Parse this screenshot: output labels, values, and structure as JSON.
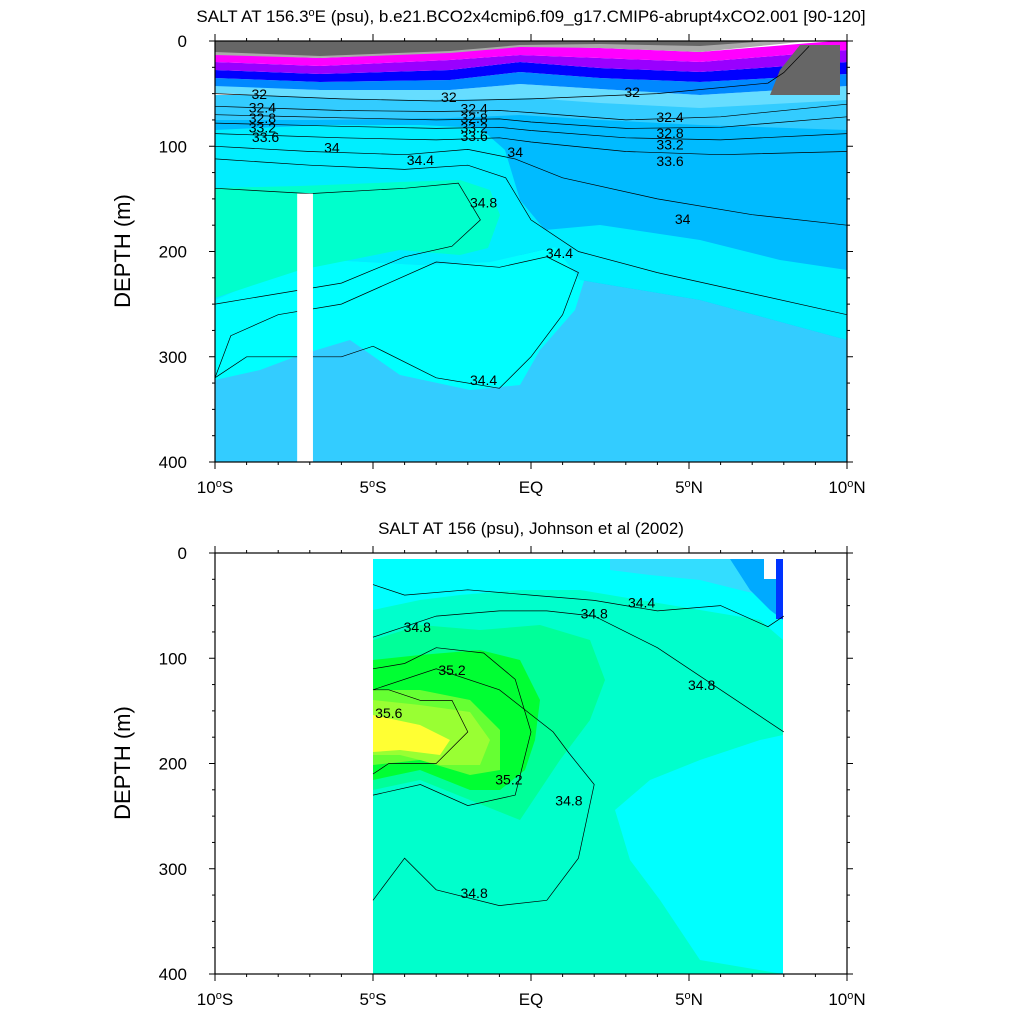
{
  "chart_data": [
    {
      "type": "heatmap",
      "title": "SALT AT 156.3°E (psu), b.e21.BCO2x4cmip6.f09_g17.CMIP6-abrupt4xCO2.001 [90-120]",
      "title_main": "SALT AT 156.3",
      "title_deg": "o",
      "title_rest": "E (psu), b.e21.BCO2x4cmip6.f09_g17.CMIP6-abrupt4xCO2.001 [90-120]",
      "ylabel": "DEPTH (m)",
      "xlabel": "",
      "xlim": [
        -10,
        10
      ],
      "ylim": [
        0,
        400
      ],
      "y_reversed": true,
      "x_ticks": [
        {
          "value": -10,
          "num": "10",
          "deg": "o",
          "hem": "S"
        },
        {
          "value": -5,
          "num": "5",
          "deg": "o",
          "hem": "S"
        },
        {
          "value": 0,
          "num": "EQ",
          "deg": "",
          "hem": ""
        },
        {
          "value": 5,
          "num": "5",
          "deg": "o",
          "hem": "N"
        },
        {
          "value": 10,
          "num": "10",
          "deg": "o",
          "hem": "N"
        }
      ],
      "y_ticks": [
        0,
        100,
        200,
        300,
        400
      ],
      "contour_labels": [
        {
          "text": "32",
          "x": -8.6,
          "y": 55
        },
        {
          "text": "32",
          "x": -2.6,
          "y": 58
        },
        {
          "text": "32",
          "x": 3.2,
          "y": 53
        },
        {
          "text": "32.4",
          "x": -8.5,
          "y": 68
        },
        {
          "text": "32.4",
          "x": -1.8,
          "y": 69
        },
        {
          "text": "32.4",
          "x": 4.4,
          "y": 77
        },
        {
          "text": "32.8",
          "x": -8.5,
          "y": 78
        },
        {
          "text": "32.8",
          "x": -1.8,
          "y": 78
        },
        {
          "text": "32.8",
          "x": 4.4,
          "y": 92
        },
        {
          "text": "33.2",
          "x": -8.5,
          "y": 87
        },
        {
          "text": "33.2",
          "x": -1.8,
          "y": 87
        },
        {
          "text": "33.2",
          "x": 4.4,
          "y": 103
        },
        {
          "text": "33.6",
          "x": -8.4,
          "y": 96
        },
        {
          "text": "33.6",
          "x": -1.8,
          "y": 95
        },
        {
          "text": "33.6",
          "x": 4.4,
          "y": 119
        },
        {
          "text": "34",
          "x": -6.3,
          "y": 106
        },
        {
          "text": "34",
          "x": -0.5,
          "y": 110
        },
        {
          "text": "34",
          "x": 4.8,
          "y": 174
        },
        {
          "text": "34.4",
          "x": -3.5,
          "y": 118
        },
        {
          "text": "34.4",
          "x": 0.9,
          "y": 206
        },
        {
          "text": "34.4",
          "x": -1.5,
          "y": 327
        },
        {
          "text": "34.8",
          "x": -1.5,
          "y": 158
        }
      ],
      "contour_lines": [
        {
          "level": 32,
          "x": [
            -10,
            -6,
            -3,
            0,
            4,
            7.5,
            8,
            8.8
          ],
          "y": [
            50,
            55,
            57,
            55,
            50,
            40,
            30,
            5
          ]
        },
        {
          "level": 32.4,
          "x": [
            -10,
            -6,
            -3,
            -1,
            0,
            3,
            6,
            10
          ],
          "y": [
            62,
            66,
            67,
            66,
            68,
            75,
            72,
            60
          ]
        },
        {
          "level": 32.8,
          "x": [
            -10,
            -6,
            -3,
            -1,
            0,
            3,
            6,
            10
          ],
          "y": [
            70,
            73,
            75,
            74,
            77,
            83,
            82,
            72
          ]
        },
        {
          "level": 33.2,
          "x": [
            -10,
            -6,
            -3,
            -1,
            0,
            3,
            6,
            10
          ],
          "y": [
            78,
            81,
            83,
            82,
            85,
            92,
            94,
            88
          ]
        },
        {
          "level": 33.6,
          "x": [
            -10,
            -6,
            -3,
            -1,
            0,
            3,
            6,
            10
          ],
          "y": [
            88,
            92,
            94,
            92,
            96,
            105,
            108,
            105
          ]
        },
        {
          "level": 34,
          "x": [
            -10,
            -7,
            -4,
            -2,
            -0.5,
            1,
            4,
            7,
            10
          ],
          "y": [
            100,
            105,
            108,
            103,
            112,
            130,
            150,
            165,
            175
          ]
        },
        {
          "level": 34.4,
          "x": [
            -10,
            -7,
            -4,
            -2,
            -0.8,
            0,
            1.5,
            4,
            7,
            10
          ],
          "y": [
            112,
            118,
            122,
            118,
            130,
            170,
            200,
            220,
            240,
            260
          ]
        },
        {
          "level": 34.4,
          "x": [
            -10,
            -9,
            -6,
            -5,
            -3,
            -1,
            0,
            1,
            1.5,
            0.5,
            -1,
            -3,
            -6,
            -8,
            -9.5,
            -10
          ],
          "y": [
            320,
            300,
            300,
            290,
            320,
            330,
            300,
            260,
            220,
            205,
            215,
            210,
            250,
            260,
            280,
            320
          ]
        },
        {
          "level": 34.8,
          "x": [
            -10,
            -7,
            -4,
            -2.3,
            -1.6,
            -2.5,
            -4,
            -6,
            -8,
            -10
          ],
          "y": [
            140,
            145,
            140,
            135,
            170,
            195,
            205,
            230,
            240,
            250
          ]
        }
      ],
      "filled_regions": [
        {
          "level_range": [
            34.0,
            34.4
          ],
          "color": "#33ccff"
        },
        {
          "level_range": [
            34.4,
            34.8
          ],
          "color": "#00ffff"
        },
        {
          "level_range": [
            34.8,
            35.2
          ],
          "color": "#00ffcc"
        }
      ],
      "missing_data": [
        {
          "x": [
            -7.4,
            -6.9
          ],
          "y": [
            145,
            400
          ]
        }
      ]
    },
    {
      "type": "heatmap",
      "title": "SALT AT 156 (psu), Johnson et al (2002)",
      "ylabel": "DEPTH (m)",
      "xlabel": "",
      "xlim": [
        -10,
        10
      ],
      "ylim": [
        0,
        400
      ],
      "y_reversed": true,
      "data_extent_x": [
        -5,
        8
      ],
      "x_ticks": [
        {
          "value": -10,
          "num": "10",
          "deg": "o",
          "hem": "S"
        },
        {
          "value": -5,
          "num": "5",
          "deg": "o",
          "hem": "S"
        },
        {
          "value": 0,
          "num": "EQ",
          "deg": "",
          "hem": ""
        },
        {
          "value": 5,
          "num": "5",
          "deg": "o",
          "hem": "N"
        },
        {
          "value": 10,
          "num": "10",
          "deg": "o",
          "hem": "N"
        }
      ],
      "y_ticks": [
        0,
        100,
        200,
        300,
        400
      ],
      "contour_labels": [
        {
          "text": "34.8",
          "x": -3.6,
          "y": 75
        },
        {
          "text": "34.8",
          "x": 2.0,
          "y": 62
        },
        {
          "text": "34.4",
          "x": 3.5,
          "y": 52
        },
        {
          "text": "34.8",
          "x": 5.4,
          "y": 130
        },
        {
          "text": "35.2",
          "x": -2.5,
          "y": 116
        },
        {
          "text": "35.6",
          "x": -4.5,
          "y": 157
        },
        {
          "text": "35.2",
          "x": -0.7,
          "y": 220
        },
        {
          "text": "34.8",
          "x": 1.2,
          "y": 240
        },
        {
          "text": "34.8",
          "x": -1.8,
          "y": 328
        }
      ],
      "contour_lines": [
        {
          "level": 34.4,
          "x": [
            -5,
            -4,
            -2,
            0,
            2,
            4,
            6,
            7.5,
            8
          ],
          "y": [
            30,
            40,
            35,
            40,
            45,
            55,
            50,
            70,
            60
          ]
        },
        {
          "level": 34.8,
          "x": [
            -5,
            -4,
            -3,
            -1,
            0.5,
            2,
            4,
            6,
            7.5,
            8
          ],
          "y": [
            80,
            70,
            60,
            55,
            55,
            60,
            90,
            130,
            160,
            170
          ]
        },
        {
          "level": 35.2,
          "x": [
            -5,
            -4,
            -3,
            -1.5,
            -0.5,
            0,
            -0.5,
            -2,
            -3.5,
            -5
          ],
          "y": [
            110,
            105,
            90,
            95,
            120,
            170,
            230,
            240,
            220,
            230
          ]
        },
        {
          "level": 35.6,
          "x": [
            -5,
            -4.5,
            -3.5,
            -2.5,
            -2,
            -3,
            -4.5,
            -5
          ],
          "y": [
            130,
            130,
            140,
            140,
            170,
            200,
            200,
            210
          ]
        },
        {
          "level": 34.8,
          "x": [
            -5,
            -4,
            -3,
            -1,
            0.5,
            1.5,
            2,
            1.2,
            0.7,
            -1,
            -3,
            -5
          ],
          "y": [
            330,
            290,
            320,
            335,
            330,
            290,
            220,
            190,
            170,
            130,
            110,
            130
          ]
        }
      ],
      "filled_regions": [
        {
          "level_range": [
            34.0,
            34.4
          ],
          "color": "#33ccff"
        },
        {
          "level_range": [
            34.4,
            34.8
          ],
          "color": "#00ffff"
        },
        {
          "level_range": [
            34.8,
            35.2
          ],
          "color": "#00ffcc"
        },
        {
          "level_range": [
            35.2,
            35.6
          ],
          "color": "#00ff33"
        },
        {
          "level_range": [
            35.6,
            36.0
          ],
          "color": "#99ff33"
        },
        {
          "level_range": [
            36.0,
            36.4
          ],
          "color": "#ffff33"
        }
      ]
    }
  ]
}
